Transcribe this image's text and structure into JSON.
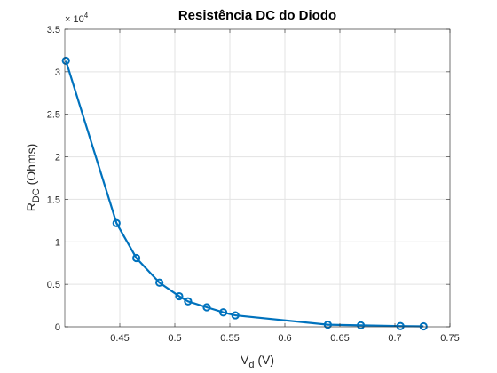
{
  "chart_data": {
    "type": "line",
    "title": "Resistência DC do Diodo",
    "xlabel": {
      "main": "V",
      "sub": "d",
      "rest": " (V)"
    },
    "ylabel": {
      "main": "R",
      "sub": "DC",
      "rest": " (Ohms)"
    },
    "y_exponent": {
      "base": "× 10",
      "power": "4"
    },
    "xlim": [
      0.4,
      0.75
    ],
    "ylim": [
      0,
      35000
    ],
    "x_ticks": [
      0.45,
      0.5,
      0.55,
      0.6,
      0.65,
      0.7,
      0.75
    ],
    "x_tick_labels": [
      "0.45",
      "0.5",
      "0.55",
      "0.6",
      "0.65",
      "0.7",
      "0.75"
    ],
    "y_ticks": [
      0,
      5000,
      10000,
      15000,
      20000,
      25000,
      30000,
      35000
    ],
    "y_tick_labels": [
      "0",
      "0.5",
      "1",
      "1.5",
      "2",
      "2.5",
      "3",
      "3.5"
    ],
    "grid": true,
    "series": [
      {
        "color": "#0072BD",
        "marker": "circle",
        "x": [
          0.401,
          0.447,
          0.465,
          0.486,
          0.504,
          0.512,
          0.529,
          0.544,
          0.555,
          0.639,
          0.669,
          0.705,
          0.726
        ],
        "y": [
          31300,
          12200,
          8100,
          5200,
          3600,
          3000,
          2300,
          1700,
          1350,
          250,
          170,
          80,
          50
        ]
      }
    ]
  }
}
